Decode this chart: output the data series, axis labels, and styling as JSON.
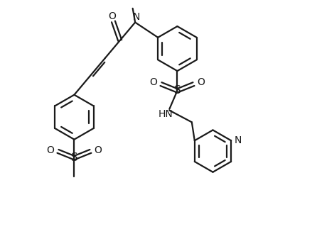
{
  "bg_color": "#ffffff",
  "line_color": "#1a1a1a",
  "text_color": "#1a1a1a",
  "bond_lw": 1.6,
  "figsize": [
    4.46,
    3.23
  ],
  "dpi": 100,
  "xlim": [
    0,
    12
  ],
  "ylim": [
    0,
    8.6
  ]
}
